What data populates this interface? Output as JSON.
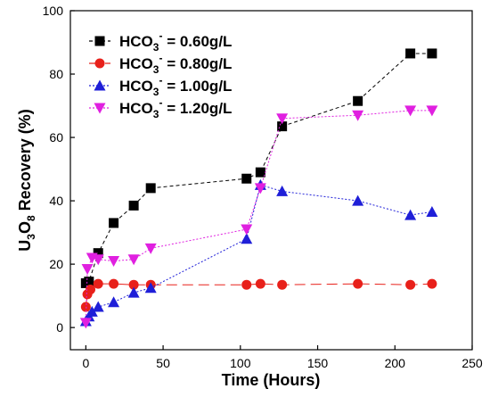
{
  "chart_data": {
    "type": "line",
    "xlabel": "Time (Hours)",
    "ylabel_parts": [
      "U",
      "3",
      "O",
      "8",
      " Recovery (%)"
    ],
    "xlim": [
      -10,
      250
    ],
    "ylim": [
      -7,
      100
    ],
    "xticks": [
      0,
      50,
      100,
      150,
      200,
      250
    ],
    "yticks": [
      0,
      20,
      40,
      60,
      80,
      100
    ],
    "grid": false,
    "legend_position": "top-left",
    "series": [
      {
        "name": "HCO3- = 0.60g/L",
        "legend_parts": [
          "HCO",
          "3",
          "-",
          " = 0.60g/L"
        ],
        "color": "#000000",
        "marker": "square",
        "dash": "4,3",
        "points": [
          [
            0,
            14
          ],
          [
            2,
            14.5
          ],
          [
            8,
            23.5
          ],
          [
            18,
            33
          ],
          [
            31,
            38.5
          ],
          [
            42,
            44
          ],
          [
            104,
            47
          ],
          [
            113,
            49
          ],
          [
            127,
            63.5
          ],
          [
            176,
            71.5
          ],
          [
            210,
            86.5
          ],
          [
            224,
            86.5
          ]
        ]
      },
      {
        "name": "HCO3- = 0.80g/L",
        "legend_parts": [
          "HCO",
          "3",
          "-",
          " = 0.80g/L"
        ],
        "color": "#e8201a",
        "marker": "circle",
        "dash": "12,6",
        "points": [
          [
            0,
            6.5
          ],
          [
            1,
            10.5
          ],
          [
            3,
            12
          ],
          [
            8,
            13.8
          ],
          [
            18,
            13.8
          ],
          [
            31,
            13.5
          ],
          [
            42,
            13.5
          ],
          [
            104,
            13.5
          ],
          [
            113,
            13.8
          ],
          [
            127,
            13.5
          ],
          [
            176,
            13.8
          ],
          [
            210,
            13.5
          ],
          [
            224,
            13.8
          ]
        ]
      },
      {
        "name": "HCO3- = 1.00g/L",
        "legend_parts": [
          "HCO",
          "3",
          "-",
          " = 1.00g/L"
        ],
        "color": "#1f1fd8",
        "marker": "triangle-up",
        "dash": "2,2",
        "points": [
          [
            0,
            2
          ],
          [
            2,
            3.5
          ],
          [
            4,
            5
          ],
          [
            8,
            6.5
          ],
          [
            18,
            8
          ],
          [
            31,
            11
          ],
          [
            42,
            12.5
          ],
          [
            104,
            28
          ],
          [
            113,
            45
          ],
          [
            127,
            43
          ],
          [
            176,
            40
          ],
          [
            210,
            35.5
          ],
          [
            224,
            36.5
          ]
        ]
      },
      {
        "name": "HCO3- = 1.20g/L",
        "legend_parts": [
          "HCO",
          "3",
          "-",
          " = 1.20g/L"
        ],
        "color": "#e020e0",
        "marker": "triangle-down",
        "dash": "2,2",
        "points": [
          [
            0,
            1.5
          ],
          [
            1,
            18.5
          ],
          [
            4,
            22
          ],
          [
            8,
            21.5
          ],
          [
            18,
            21
          ],
          [
            31,
            21.5
          ],
          [
            42,
            25
          ],
          [
            104,
            31
          ],
          [
            113,
            44
          ],
          [
            127,
            66
          ],
          [
            176,
            67
          ],
          [
            210,
            68.5
          ],
          [
            224,
            68.5
          ]
        ]
      }
    ]
  }
}
